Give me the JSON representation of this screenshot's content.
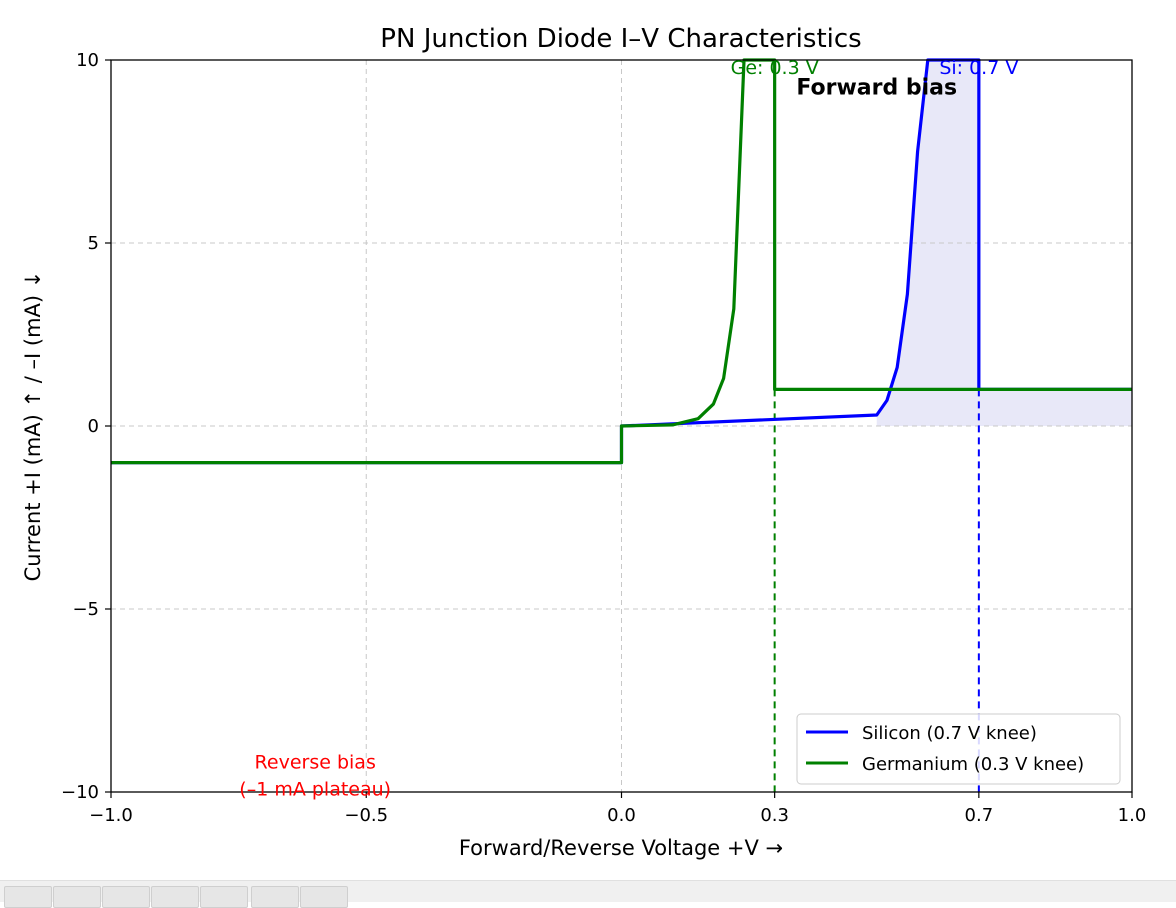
{
  "chart_data": {
    "type": "line",
    "title": "PN Junction Diode I–V Characteristics",
    "xlabel": "Forward/Reverse Voltage +V →",
    "ylabel": "Current +I (mA) ↑ / –I (mA) ↓",
    "xlim": [
      -1.0,
      1.0
    ],
    "ylim": [
      -10,
      10
    ],
    "xticks": [
      -1.0,
      -0.5,
      0.0,
      0.3,
      0.7,
      1.0
    ],
    "xtick_labels": [
      "−1.0",
      "−0.5",
      "0.0",
      "0.3",
      "0.7",
      "1.0"
    ],
    "yticks": [
      -10,
      -5,
      0,
      5,
      10
    ],
    "ytick_labels": [
      "−10",
      "−5",
      "0",
      "5",
      "10"
    ],
    "grid": true,
    "legend_position": "lower-right",
    "series": [
      {
        "name": "Silicon (0.7 V knee)",
        "color": "#0000ff",
        "knee": 0.7,
        "x": [
          -1.0,
          0.0,
          0.0,
          0.5,
          0.52,
          0.54,
          0.56,
          0.58,
          0.6,
          0.7,
          0.7,
          1.0
        ],
        "y": [
          -1,
          -1,
          0,
          0.3,
          0.7,
          1.6,
          3.6,
          7.5,
          10,
          10,
          1,
          1
        ]
      },
      {
        "name": "Germanium (0.3 V knee)",
        "color": "#008000",
        "knee": 0.3,
        "x": [
          -1.0,
          0.0,
          0.0,
          0.1,
          0.15,
          0.18,
          0.2,
          0.22,
          0.24,
          0.3,
          0.3,
          1.0
        ],
        "y": [
          -1,
          -1,
          0,
          0.03,
          0.2,
          0.6,
          1.3,
          3.2,
          10,
          10,
          1,
          1
        ]
      }
    ],
    "shaded_region": {
      "color": "#e8e8f8"
    },
    "knee_markers": [
      {
        "x": 0.3,
        "color": "#008000"
      },
      {
        "x": 0.7,
        "color": "#0000ff"
      }
    ],
    "annotations": {
      "ge_knee": {
        "text": "Ge: 0.3 V",
        "color": "#008000",
        "x": 0.3,
        "y": 10
      },
      "si_knee": {
        "text": "Si: 0.7 V",
        "color": "#0000ff",
        "x": 0.7,
        "y": 10
      },
      "forward_bias": {
        "text": "Forward bias",
        "color": "#000000",
        "x": 0.5,
        "y": 9.2
      },
      "reverse_bias_1": {
        "text": "Reverse bias",
        "color": "#ff0000",
        "x": -0.6,
        "y": -9.2
      },
      "reverse_bias_2": {
        "text": "(–1 mA plateau)",
        "color": "#ff0000",
        "x": -0.6,
        "y": -9.9
      }
    }
  }
}
